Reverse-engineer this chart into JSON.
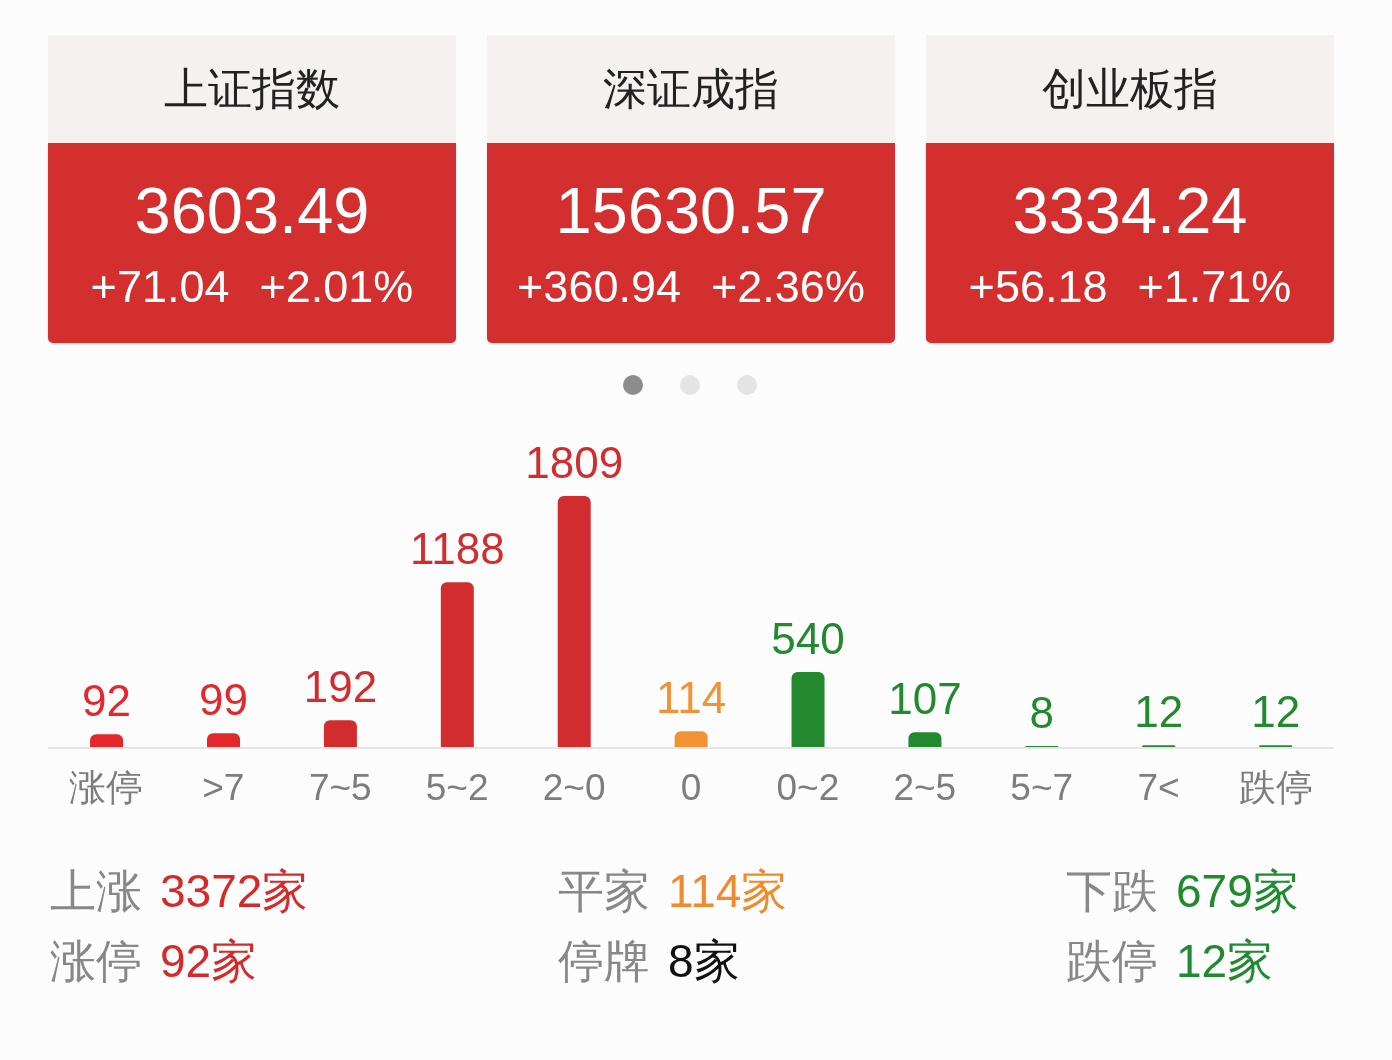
{
  "chart_data": [
    {
      "type": "other",
      "title": "上证指数",
      "annotations": [
        "3603.49",
        "+71.04",
        "+2.01%"
      ]
    },
    {
      "type": "other",
      "title": "深证成指",
      "annotations": [
        "15630.57",
        "+360.94",
        "+2.36%"
      ]
    },
    {
      "type": "other",
      "title": "创业板指",
      "annotations": [
        "3334.24",
        "+56.18",
        "+1.71%"
      ]
    },
    {
      "type": "bar",
      "categories": [
        "涨停",
        ">7",
        "7~5",
        "5~2",
        "2~0",
        "0",
        "0~2",
        "2~5",
        "5~7",
        "7<",
        "跌停"
      ],
      "values": [
        92,
        99,
        192,
        1188,
        1809,
        114,
        540,
        107,
        8,
        12,
        12
      ],
      "colors": [
        "#e3272a",
        "#e3272a",
        "#d22d2e",
        "#d22d2e",
        "#d22d2e",
        "#f39233",
        "#23892f",
        "#23892f",
        "#23892f",
        "#23892f",
        "#23892f"
      ],
      "data_labels": true,
      "annotations": [
        "上涨",
        "3372家",
        "平家",
        "114家",
        "下跌",
        "679家",
        "涨停",
        "92家",
        "停牌",
        "8家",
        "跌停",
        "12家"
      ]
    }
  ]
}
